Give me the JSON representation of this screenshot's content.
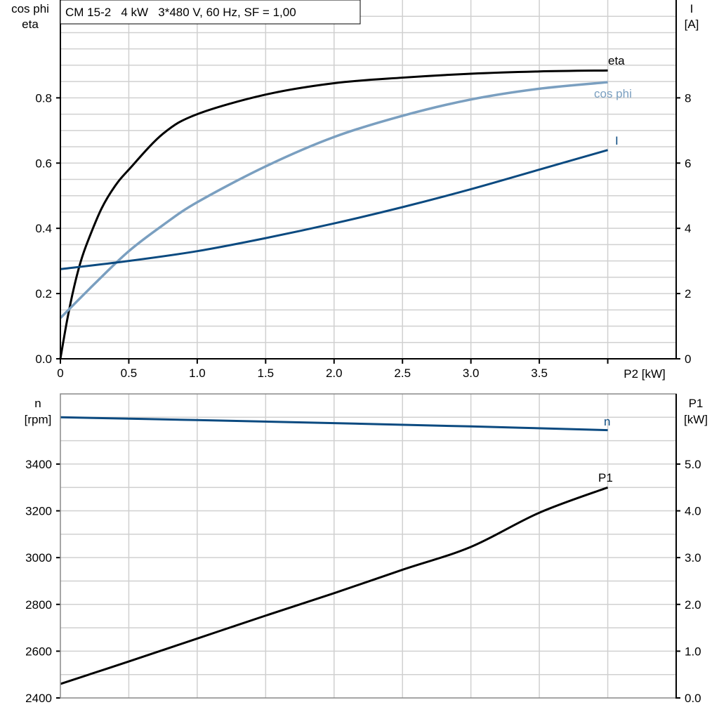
{
  "chart_data": [
    {
      "type": "line",
      "title": "CM 15-2   4 kW   3*480 V, 60 Hz, SF = 1,00",
      "xlabel": "P2 [kW]",
      "ylabel_left": [
        "cos phi",
        "eta"
      ],
      "ylabel_right": [
        "I",
        "[A]"
      ],
      "xlim": [
        0,
        4.5
      ],
      "ylim_left": [
        0,
        1.1
      ],
      "ylim_right": [
        0,
        11
      ],
      "x_ticks": [
        "0",
        "0.5",
        "1.0",
        "1.5",
        "2.0",
        "2.5",
        "3.0",
        "3.5"
      ],
      "y_left_ticks": [
        "0.0",
        "0.2",
        "0.4",
        "0.6",
        "0.8"
      ],
      "y_right_ticks": [
        "0",
        "2",
        "4",
        "6",
        "8"
      ],
      "grid": true,
      "series": [
        {
          "name": "eta",
          "axis": "left",
          "color": "#000000",
          "x": [
            0,
            0.05,
            0.1,
            0.15,
            0.2,
            0.3,
            0.4,
            0.5,
            0.75,
            1.0,
            1.5,
            2.0,
            2.5,
            3.0,
            3.5,
            4.0
          ],
          "y": [
            0,
            0.12,
            0.22,
            0.3,
            0.36,
            0.46,
            0.53,
            0.58,
            0.69,
            0.75,
            0.81,
            0.845,
            0.862,
            0.874,
            0.881,
            0.884
          ]
        },
        {
          "name": "cos phi",
          "axis": "left",
          "color": "#7a9fc0",
          "x": [
            0,
            0.25,
            0.5,
            0.75,
            1.0,
            1.5,
            2.0,
            2.5,
            3.0,
            3.5,
            4.0
          ],
          "y": [
            0.125,
            0.23,
            0.33,
            0.41,
            0.48,
            0.59,
            0.68,
            0.745,
            0.795,
            0.828,
            0.848
          ]
        },
        {
          "name": "I",
          "axis": "right",
          "color": "#0b4a80",
          "x": [
            0,
            0.5,
            1.0,
            1.5,
            2.0,
            2.5,
            3.0,
            3.5,
            4.0
          ],
          "y": [
            2.75,
            3.0,
            3.3,
            3.7,
            4.15,
            4.65,
            5.2,
            5.8,
            6.4
          ]
        }
      ]
    },
    {
      "type": "line",
      "ylabel_left": [
        "n",
        "[rpm]"
      ],
      "ylabel_right": [
        "P1",
        "[kW]"
      ],
      "xlim": [
        0,
        4.5
      ],
      "ylim_left": [
        2400,
        3700
      ],
      "ylim_right": [
        0,
        6.5
      ],
      "y_left_ticks": [
        "2400",
        "2600",
        "2800",
        "3000",
        "3200",
        "3400"
      ],
      "y_right_ticks": [
        "0.0",
        "1.0",
        "2.0",
        "3.0",
        "4.0",
        "5.0"
      ],
      "grid": true,
      "series": [
        {
          "name": "n",
          "axis": "left",
          "color": "#0b4a80",
          "x": [
            0,
            1.0,
            2.0,
            3.0,
            4.0
          ],
          "y": [
            3600,
            3588,
            3575,
            3561,
            3545
          ]
        },
        {
          "name": "P1",
          "axis": "right",
          "color": "#000000",
          "x": [
            0,
            0.5,
            1.0,
            1.5,
            2.0,
            2.5,
            3.0,
            3.5,
            4.0
          ],
          "y": [
            0.3,
            0.78,
            1.27,
            1.76,
            2.24,
            2.74,
            3.23,
            3.96,
            4.5
          ]
        }
      ]
    }
  ]
}
